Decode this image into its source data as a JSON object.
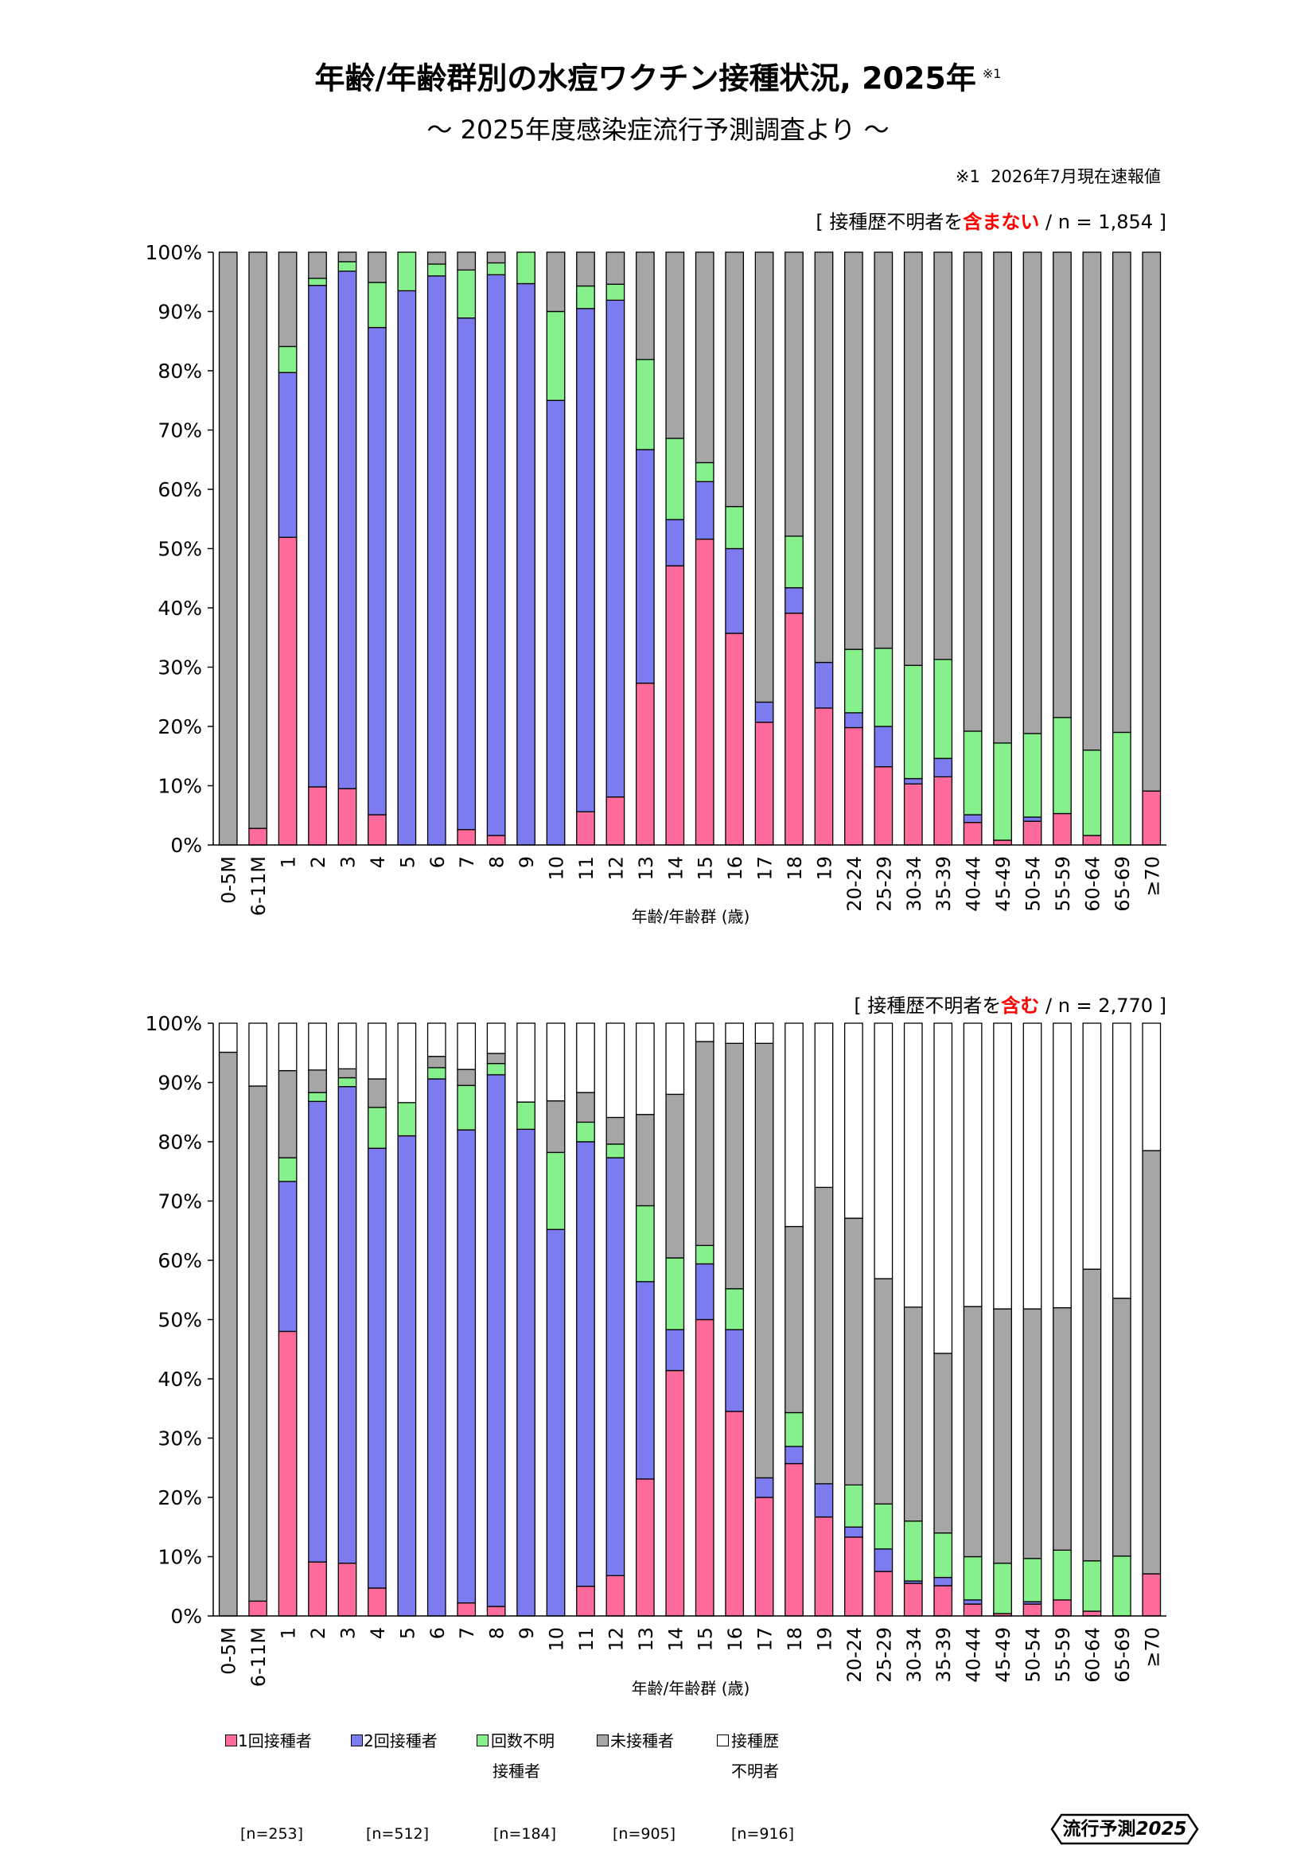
{
  "title": {
    "text": "年齢/年齢群別の水痘ワクチン接種状況, 2025年",
    "note_mark": "※1"
  },
  "subtitle": "～ 2025年度感染症流行予測調査より ～",
  "footnote": "※1  2026年7月現在速報値",
  "legend": {
    "items": [
      {
        "lines": [
          "1回接種者"
        ],
        "n": "[n=253]",
        "color": "#FF6B9A"
      },
      {
        "lines": [
          "2回接種者"
        ],
        "n": "[n=512]",
        "color": "#7C7CF0"
      },
      {
        "lines": [
          "回数不明",
          "接種者"
        ],
        "n": "[n=184]",
        "color": "#86F08C"
      },
      {
        "lines": [
          "未接種者"
        ],
        "n": "[n=905]",
        "color": "#A6A6A6"
      },
      {
        "lines": [
          "接種歴",
          "不明者"
        ],
        "n": "[n=916]",
        "color": "#FFFFFF"
      }
    ]
  },
  "logo": {
    "text": "流行予測",
    "year": "2025"
  },
  "chart_data": [
    {
      "type": "bar",
      "stacked": true,
      "header": {
        "prefix": "[ 接種歴不明者を",
        "highlight": "含まない",
        "suffix": " / n = 1,854 ]",
        "highlight_color": "#FF0000"
      },
      "xlabel": "年齢/年齢群 (歳)",
      "ylim": [
        0,
        100
      ],
      "yticks": [
        "0%",
        "10%",
        "20%",
        "30%",
        "40%",
        "50%",
        "60%",
        "70%",
        "80%",
        "90%",
        "100%"
      ],
      "grid": false,
      "legend_position": "bottom",
      "categories": [
        "0-5M",
        "6-11M",
        "1",
        "2",
        "3",
        "4",
        "5",
        "6",
        "7",
        "8",
        "9",
        "10",
        "11",
        "12",
        "13",
        "14",
        "15",
        "16",
        "17",
        "18",
        "19",
        "20-24",
        "25-29",
        "30-34",
        "35-39",
        "40-44",
        "45-49",
        "50-54",
        "55-59",
        "60-64",
        "65-69",
        "≥70"
      ],
      "series": [
        {
          "legend_item": 0,
          "values": [
            0,
            2.8,
            51.9,
            9.8,
            9.5,
            5.1,
            0,
            0,
            2.6,
            1.6,
            0,
            0,
            5.6,
            8.1,
            27.3,
            47.1,
            51.6,
            35.7,
            20.7,
            39.1,
            23.1,
            19.8,
            13.2,
            10.3,
            11.5,
            3.8,
            0.8,
            4.0,
            5.3,
            1.6,
            0,
            9.1
          ]
        },
        {
          "legend_item": 1,
          "values": [
            0,
            0,
            27.8,
            84.6,
            87.3,
            82.2,
            93.5,
            96.0,
            86.3,
            94.6,
            94.7,
            75.0,
            84.9,
            83.8,
            39.4,
            7.8,
            9.7,
            14.3,
            3.4,
            4.3,
            7.7,
            2.5,
            6.8,
            0.9,
            3.1,
            1.3,
            0,
            0.7,
            0,
            0,
            0,
            0
          ]
        },
        {
          "legend_item": 2,
          "values": [
            0,
            0,
            4.4,
            1.2,
            1.6,
            7.6,
            6.5,
            2.0,
            8.1,
            2.0,
            5.3,
            15.0,
            3.8,
            2.7,
            15.2,
            13.7,
            3.2,
            7.1,
            0,
            8.7,
            0,
            10.7,
            13.2,
            19.1,
            16.7,
            14.1,
            16.4,
            14.1,
            16.2,
            14.4,
            19.0,
            0
          ]
        },
        {
          "legend_item": 3,
          "values": [
            100,
            97.2,
            15.9,
            4.4,
            1.6,
            5.1,
            0,
            2.0,
            3.0,
            1.8,
            0,
            10.0,
            5.7,
            5.4,
            18.1,
            31.4,
            35.5,
            42.9,
            75.9,
            47.9,
            69.2,
            67.0,
            66.8,
            69.7,
            68.7,
            80.8,
            82.8,
            81.2,
            78.5,
            84.0,
            81.0,
            90.9
          ]
        }
      ]
    },
    {
      "type": "bar",
      "stacked": true,
      "header": {
        "prefix": "[ 接種歴不明者を",
        "highlight": "含む",
        "suffix": " / n = 2,770 ]",
        "highlight_color": "#FF0000"
      },
      "xlabel": "年齢/年齢群 (歳)",
      "ylim": [
        0,
        100
      ],
      "yticks": [
        "0%",
        "10%",
        "20%",
        "30%",
        "40%",
        "50%",
        "60%",
        "70%",
        "80%",
        "90%",
        "100%"
      ],
      "grid": false,
      "legend_position": "bottom",
      "categories": [
        "0-5M",
        "6-11M",
        "1",
        "2",
        "3",
        "4",
        "5",
        "6",
        "7",
        "8",
        "9",
        "10",
        "11",
        "12",
        "13",
        "14",
        "15",
        "16",
        "17",
        "18",
        "19",
        "20-24",
        "25-29",
        "30-34",
        "35-39",
        "40-44",
        "45-49",
        "50-54",
        "55-59",
        "60-64",
        "65-69",
        "≥70"
      ],
      "series": [
        {
          "legend_item": 0,
          "values": [
            0,
            2.5,
            48.0,
            9.1,
            8.9,
            4.7,
            0,
            0,
            2.2,
            1.6,
            0,
            0,
            5.0,
            6.8,
            23.1,
            41.4,
            50.0,
            34.5,
            20.0,
            25.7,
            16.7,
            13.3,
            7.5,
            5.5,
            5.1,
            2.0,
            0.4,
            2.0,
            2.7,
            0.8,
            0,
            7.1
          ]
        },
        {
          "legend_item": 1,
          "values": [
            0,
            0,
            25.3,
            77.7,
            80.4,
            74.2,
            81.0,
            90.6,
            79.8,
            89.7,
            82.1,
            65.2,
            75.0,
            70.5,
            33.3,
            6.9,
            9.4,
            13.8,
            3.3,
            2.9,
            5.6,
            1.7,
            3.8,
            0.4,
            1.4,
            0.7,
            0,
            0.4,
            0,
            0,
            0,
            0
          ]
        },
        {
          "legend_item": 2,
          "values": [
            0,
            0,
            4.0,
            1.5,
            1.5,
            6.9,
            5.6,
            1.9,
            7.5,
            1.9,
            4.6,
            13.0,
            3.3,
            2.3,
            12.8,
            12.1,
            3.1,
            6.9,
            0,
            5.7,
            0,
            7.1,
            7.6,
            10.1,
            7.5,
            7.3,
            8.5,
            7.3,
            8.4,
            8.5,
            10.1,
            0
          ]
        },
        {
          "legend_item": 3,
          "values": [
            95.1,
            86.9,
            14.7,
            3.8,
            1.5,
            4.8,
            0,
            1.9,
            2.7,
            1.7,
            0,
            8.7,
            5.0,
            4.5,
            15.4,
            27.6,
            34.4,
            41.4,
            73.3,
            31.4,
            50.0,
            45.0,
            38.0,
            36.1,
            30.3,
            42.2,
            42.9,
            42.1,
            40.9,
            49.2,
            43.5,
            71.4
          ]
        },
        {
          "legend_item": 4,
          "values": [
            4.9,
            10.6,
            8.0,
            7.9,
            7.7,
            9.4,
            13.4,
            5.6,
            7.8,
            5.1,
            13.3,
            13.1,
            11.7,
            15.9,
            15.4,
            12.0,
            3.1,
            3.4,
            3.4,
            34.3,
            27.7,
            32.9,
            43.1,
            47.9,
            55.7,
            47.8,
            48.2,
            48.2,
            48.0,
            41.5,
            46.4,
            21.5
          ]
        }
      ]
    }
  ]
}
